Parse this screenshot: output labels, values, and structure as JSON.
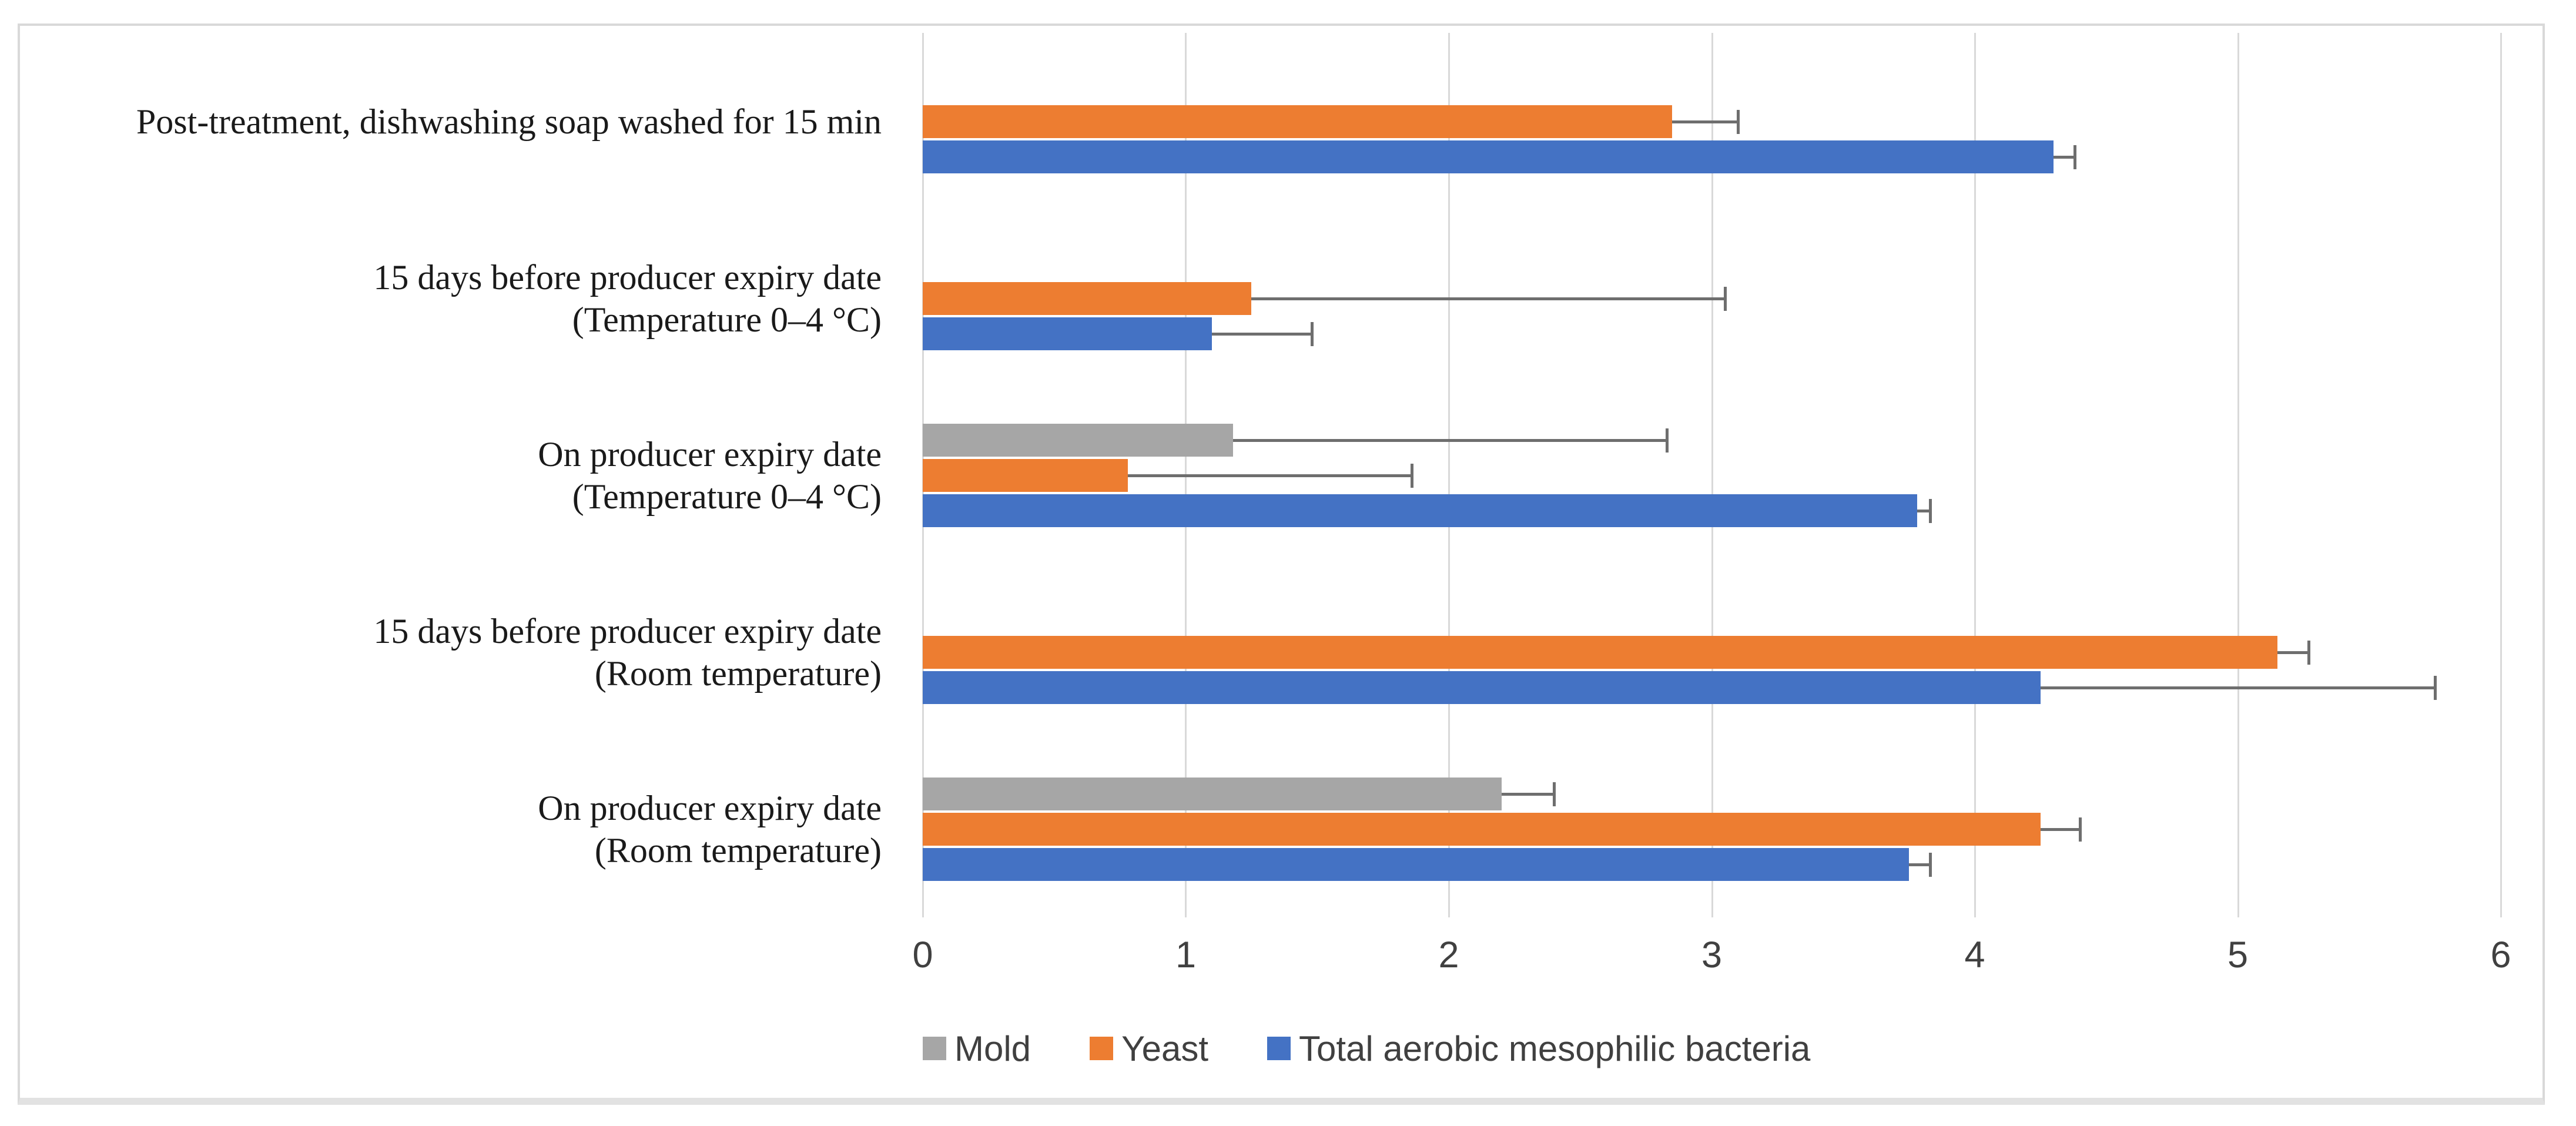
{
  "chart_data": {
    "type": "bar",
    "orientation": "horizontal",
    "title": "",
    "xlabel": "",
    "ylabel": "",
    "xlim": [
      0,
      6
    ],
    "x_ticks": [
      0,
      1,
      2,
      3,
      4,
      5,
      6
    ],
    "grid": true,
    "categories_top_to_bottom": [
      [
        "Post-treatment, dishwashing soap washed for 15 min"
      ],
      [
        "15 days before producer expiry date",
        "(Temperature 0–4 °C)"
      ],
      [
        "On producer expiry date",
        "(Temperature 0–4 °C)"
      ],
      [
        "15 days before producer expiry date",
        "(Room temperature)"
      ],
      [
        "On producer expiry date",
        "(Room temperature)"
      ]
    ],
    "series": [
      {
        "name": "Mold",
        "color": "#A6A6A6",
        "values": [
          null,
          null,
          1.18,
          null,
          2.2
        ],
        "error_plus": [
          null,
          null,
          1.65,
          null,
          0.2
        ]
      },
      {
        "name": "Yeast",
        "color": "#ED7D31",
        "values": [
          2.85,
          1.25,
          0.78,
          5.15,
          4.25
        ],
        "error_plus": [
          0.25,
          1.8,
          1.08,
          0.12,
          0.15
        ]
      },
      {
        "name": "Total aerobic mesophilic bacteria",
        "color": "#4472C4",
        "values": [
          4.3,
          1.1,
          3.78,
          4.25,
          3.75
        ],
        "error_plus": [
          0.08,
          0.38,
          0.05,
          1.5,
          0.08
        ]
      }
    ],
    "legend": {
      "position": "bottom",
      "labels": [
        "Mold",
        "Yeast",
        "Total aerobic mesophilic bacteria"
      ]
    }
  },
  "style": {
    "gridline_color": "#D9D9D9",
    "border_color": "#D9D9D9",
    "error_bar_color": "#6E6E6E",
    "tick_text_color": "#404040",
    "label_text_color": "#1a1a1a"
  }
}
